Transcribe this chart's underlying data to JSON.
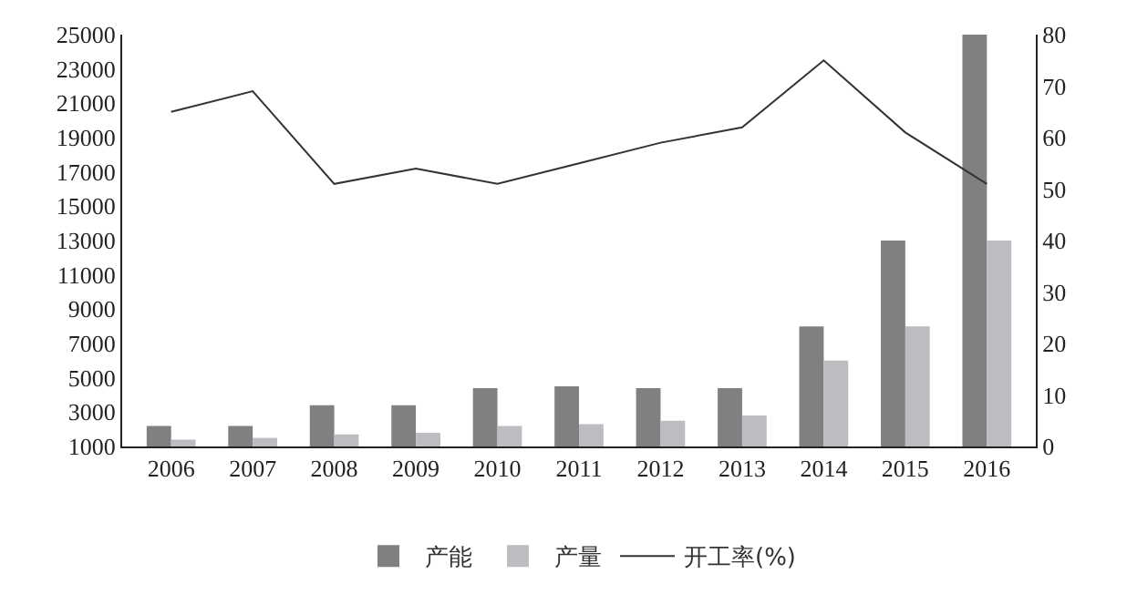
{
  "chart_data": {
    "type": "bar",
    "categories": [
      "2006",
      "2007",
      "2008",
      "2009",
      "2010",
      "2011",
      "2012",
      "2013",
      "2014",
      "2015",
      "2016"
    ],
    "series": [
      {
        "name": "产能",
        "color": "#808083",
        "values": [
          2200,
          2200,
          3400,
          3400,
          4400,
          4500,
          4400,
          4400,
          8000,
          13000,
          25000
        ]
      },
      {
        "name": "产量",
        "color": "#bcbdc0",
        "values": [
          1400,
          1500,
          1700,
          1800,
          2200,
          2300,
          2500,
          2800,
          6000,
          8000,
          13000
        ]
      },
      {
        "name": "开工率(%)",
        "type": "line",
        "axis": "y2",
        "color": "#333333",
        "values": [
          65,
          69,
          51,
          54,
          51,
          55,
          59,
          62,
          75,
          61,
          51
        ]
      }
    ],
    "ylim": [
      1000,
      25000
    ],
    "yticks": [
      1000,
      3000,
      5000,
      7000,
      9000,
      11000,
      13000,
      15000,
      17000,
      19000,
      21000,
      23000,
      25000
    ],
    "y2lim": [
      0,
      80
    ],
    "y2ticks": [
      0,
      10,
      20,
      30,
      40,
      50,
      60,
      70,
      80
    ],
    "grid": false,
    "legend": "bottom",
    "marker": "none",
    "line_style": "solid"
  }
}
